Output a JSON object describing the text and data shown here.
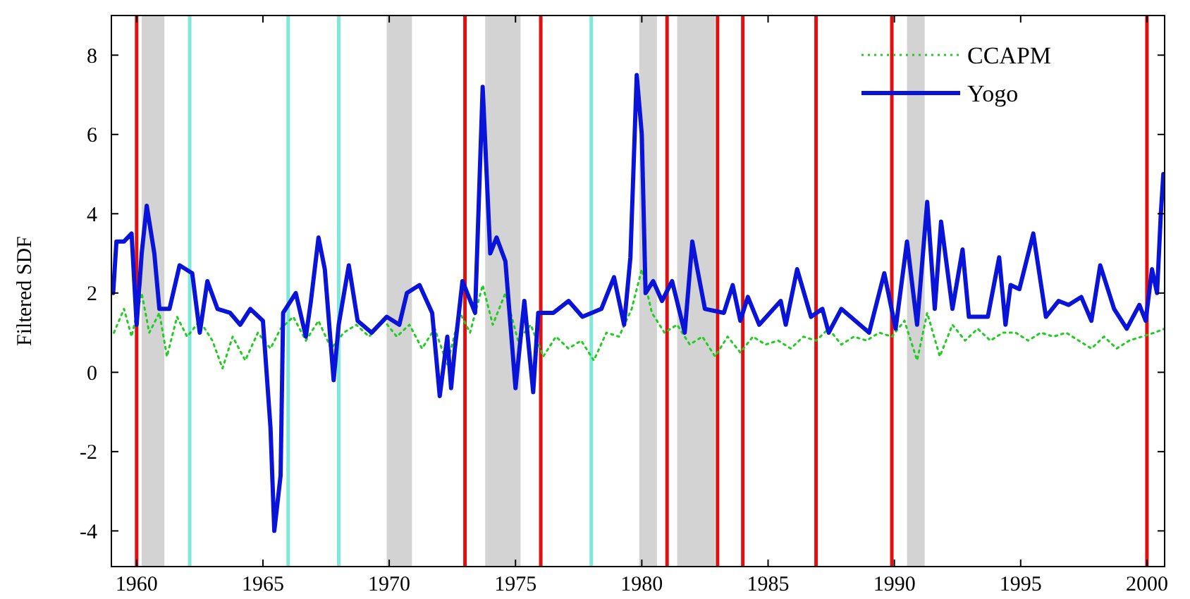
{
  "chart_data": {
    "type": "line",
    "ylabel": "Filtered SDF",
    "xlim": [
      1959.0,
      2000.7
    ],
    "ylim": [
      -4.9,
      9
    ],
    "xticks": [
      1960,
      1965,
      1970,
      1975,
      1980,
      1985,
      1990,
      1995,
      2000
    ],
    "yticks": [
      -4,
      -2,
      0,
      2,
      4,
      6,
      8
    ],
    "grid": false,
    "legend": "top right",
    "bands": [
      {
        "axis": "x",
        "from": 1960.2,
        "to": 1961.1,
        "color": "#d3d3d3"
      },
      {
        "axis": "x",
        "from": 1969.9,
        "to": 1970.9,
        "color": "#d3d3d3"
      },
      {
        "axis": "x",
        "from": 1973.8,
        "to": 1975.2,
        "color": "#d3d3d3"
      },
      {
        "axis": "x",
        "from": 1979.9,
        "to": 1980.6,
        "color": "#d3d3d3"
      },
      {
        "axis": "x",
        "from": 1981.4,
        "to": 1982.9,
        "color": "#d3d3d3"
      },
      {
        "axis": "x",
        "from": 1990.5,
        "to": 1991.2,
        "color": "#d3d3d3"
      }
    ],
    "ref_lines": [
      {
        "axis": "x",
        "value": 1960.0,
        "color": "#e01010"
      },
      {
        "axis": "x",
        "value": 1962.1,
        "color": "#7fe8d8"
      },
      {
        "axis": "x",
        "value": 1966.0,
        "color": "#7fe8d8"
      },
      {
        "axis": "x",
        "value": 1968.0,
        "color": "#7fe8d8"
      },
      {
        "axis": "x",
        "value": 1973.0,
        "color": "#e01010"
      },
      {
        "axis": "x",
        "value": 1976.0,
        "color": "#e01010"
      },
      {
        "axis": "x",
        "value": 1978.0,
        "color": "#7fe8d8"
      },
      {
        "axis": "x",
        "value": 1981.0,
        "color": "#e01010"
      },
      {
        "axis": "x",
        "value": 1983.0,
        "color": "#e01010"
      },
      {
        "axis": "x",
        "value": 1984.0,
        "color": "#e01010"
      },
      {
        "axis": "x",
        "value": 1986.9,
        "color": "#e01010"
      },
      {
        "axis": "x",
        "value": 1989.9,
        "color": "#e01010"
      },
      {
        "axis": "x",
        "value": 2000.0,
        "color": "#e01010"
      }
    ],
    "series": [
      {
        "name": "CCAPM",
        "color": "#22cc22",
        "line_style": "dotted",
        "x": [
          1959.1,
          1959.5,
          1959.8,
          1960.2,
          1960.5,
          1960.9,
          1961.2,
          1961.6,
          1962.0,
          1962.5,
          1963.0,
          1963.4,
          1963.8,
          1964.3,
          1964.8,
          1965.3,
          1965.7,
          1966.2,
          1966.7,
          1967.2,
          1967.7,
          1968.2,
          1968.7,
          1969.2,
          1969.8,
          1970.3,
          1970.8,
          1971.3,
          1971.8,
          1972.3,
          1972.8,
          1973.2,
          1973.7,
          1974.1,
          1974.6,
          1975.1,
          1975.6,
          1976.1,
          1976.6,
          1977.1,
          1977.6,
          1978.1,
          1978.6,
          1979.1,
          1979.6,
          1980.0,
          1980.4,
          1980.9,
          1981.4,
          1981.9,
          1982.4,
          1982.9,
          1983.4,
          1983.9,
          1984.4,
          1984.9,
          1985.4,
          1985.9,
          1986.4,
          1986.9,
          1987.4,
          1987.9,
          1988.4,
          1988.9,
          1989.4,
          1989.9,
          1990.4,
          1990.9,
          1991.3,
          1991.8,
          1992.3,
          1992.8,
          1993.3,
          1993.8,
          1994.3,
          1994.8,
          1995.3,
          1995.8,
          1996.3,
          1996.8,
          1997.3,
          1997.8,
          1998.3,
          1998.8,
          1999.3,
          1999.8,
          2000.3,
          2000.7
        ],
        "values": [
          1.0,
          1.6,
          0.9,
          2.0,
          1.0,
          1.5,
          0.4,
          1.4,
          0.9,
          1.3,
          0.8,
          0.1,
          0.9,
          0.3,
          1.0,
          0.6,
          1.1,
          1.4,
          0.8,
          1.3,
          0.6,
          1.0,
          1.2,
          0.9,
          1.3,
          0.9,
          1.2,
          0.6,
          1.1,
          0.2,
          1.5,
          1.0,
          2.2,
          1.2,
          2.0,
          0.8,
          1.2,
          0.4,
          0.9,
          0.6,
          0.8,
          0.3,
          1.0,
          0.9,
          1.6,
          2.6,
          1.5,
          1.0,
          1.2,
          0.7,
          0.9,
          0.4,
          0.9,
          0.5,
          0.9,
          0.7,
          0.8,
          0.6,
          0.9,
          0.8,
          1.1,
          0.7,
          0.9,
          0.8,
          1.0,
          0.9,
          1.3,
          0.3,
          1.5,
          0.4,
          1.2,
          0.8,
          1.1,
          0.8,
          1.0,
          1.0,
          0.8,
          1.0,
          0.9,
          1.0,
          0.8,
          0.6,
          0.9,
          0.6,
          0.8,
          0.9,
          1.0,
          1.1
        ]
      },
      {
        "name": "Yogo",
        "color": "#0a14d8",
        "line_style": "solid",
        "x": [
          1959.07,
          1959.2,
          1959.5,
          1959.8,
          1960.0,
          1960.2,
          1960.4,
          1960.7,
          1960.9,
          1961.3,
          1961.7,
          1962.2,
          1962.5,
          1962.8,
          1963.2,
          1963.7,
          1964.1,
          1964.5,
          1965.0,
          1965.3,
          1965.45,
          1965.7,
          1965.8,
          1966.3,
          1966.7,
          1966.9,
          1967.2,
          1967.45,
          1967.8,
          1968.0,
          1968.4,
          1968.75,
          1969.3,
          1969.9,
          1970.4,
          1970.7,
          1971.2,
          1971.7,
          1972.0,
          1972.3,
          1972.45,
          1972.6,
          1972.9,
          1973.4,
          1973.7,
          1974.0,
          1974.25,
          1974.6,
          1975.0,
          1975.35,
          1975.7,
          1975.9,
          1976.5,
          1977.1,
          1977.65,
          1978.4,
          1978.9,
          1979.3,
          1979.55,
          1979.8,
          1980.0,
          1980.15,
          1980.45,
          1980.8,
          1981.2,
          1981.7,
          1982.0,
          1982.2,
          1982.5,
          1983.25,
          1983.6,
          1983.9,
          1984.2,
          1984.65,
          1985.5,
          1985.7,
          1986.15,
          1986.7,
          1987.15,
          1987.4,
          1987.9,
          1989.0,
          1989.6,
          1990.05,
          1990.5,
          1990.9,
          1991.3,
          1991.6,
          1991.85,
          1992.3,
          1992.7,
          1992.95,
          1993.7,
          1994.15,
          1994.4,
          1994.6,
          1994.95,
          1995.5,
          1996.0,
          1996.5,
          1996.9,
          1997.4,
          1997.8,
          1998.15,
          1998.7,
          1999.2,
          1999.7,
          1999.95,
          2000.2,
          2000.4,
          2000.55,
          2000.65
        ],
        "values": [
          2.0,
          3.3,
          3.3,
          3.5,
          1.2,
          3.0,
          4.2,
          3.0,
          1.6,
          1.6,
          2.7,
          2.5,
          1.0,
          2.3,
          1.6,
          1.5,
          1.2,
          1.6,
          1.3,
          -1.4,
          -4.0,
          -2.6,
          1.5,
          2.0,
          0.9,
          1.8,
          3.4,
          2.6,
          -0.2,
          1.2,
          2.7,
          1.3,
          1.0,
          1.4,
          1.2,
          2.0,
          2.2,
          1.5,
          -0.6,
          0.9,
          -0.4,
          0.6,
          2.3,
          1.5,
          7.2,
          3.0,
          3.4,
          2.8,
          -0.4,
          1.8,
          -0.5,
          1.5,
          1.5,
          1.8,
          1.4,
          1.6,
          2.4,
          1.2,
          2.9,
          7.5,
          6.0,
          2.0,
          2.3,
          1.8,
          2.3,
          1.0,
          3.3,
          2.6,
          1.6,
          1.5,
          2.2,
          1.3,
          1.9,
          1.2,
          1.8,
          1.2,
          2.6,
          1.4,
          1.6,
          1.0,
          1.6,
          1.0,
          2.5,
          1.1,
          3.3,
          1.2,
          4.3,
          1.6,
          3.8,
          1.6,
          3.1,
          1.4,
          1.4,
          2.9,
          1.2,
          2.2,
          2.1,
          3.5,
          1.4,
          1.8,
          1.7,
          1.9,
          1.3,
          2.7,
          1.6,
          1.1,
          1.7,
          1.3,
          2.6,
          2.0,
          4.0,
          5.0
        ]
      }
    ]
  }
}
